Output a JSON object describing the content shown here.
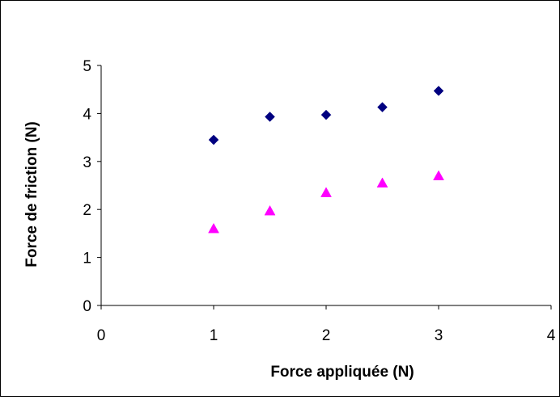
{
  "chart_data": {
    "type": "scatter",
    "xlabel": "Force appliquée (N)",
    "ylabel": "Force de friction (N)",
    "xlim": [
      0,
      4
    ],
    "ylim": [
      0,
      5
    ],
    "x_ticks": [
      "0",
      "1",
      "2",
      "3",
      "4"
    ],
    "y_ticks": [
      "0",
      "1",
      "2",
      "3",
      "4",
      "5"
    ],
    "grid": false,
    "legend": "none",
    "series": [
      {
        "marker": "diamond",
        "color": "#000080",
        "points": [
          [
            1,
            3.45
          ],
          [
            1.5,
            3.93
          ],
          [
            2,
            3.97
          ],
          [
            2.5,
            4.13
          ],
          [
            3,
            4.47
          ]
        ]
      },
      {
        "marker": "triangle",
        "color": "#ff00ff",
        "points": [
          [
            1,
            1.6
          ],
          [
            1.5,
            1.97
          ],
          [
            2,
            2.35
          ],
          [
            2.5,
            2.55
          ],
          [
            3,
            2.7
          ]
        ]
      }
    ]
  }
}
